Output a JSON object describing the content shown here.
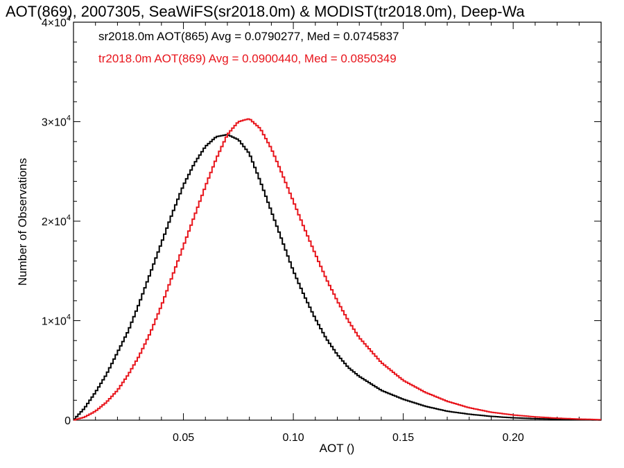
{
  "chart_data": {
    "type": "line",
    "title": "AOT(869), 2007305, SeaWiFS(sr2018.0m) & MODIST(tr2018.0m), Deep-Wa",
    "xlabel": "AOT ()",
    "ylabel": "Number of Observations",
    "xlim": [
      0.0,
      0.24
    ],
    "ylim": [
      0,
      40000
    ],
    "x_ticks": [
      0.05,
      0.1,
      0.15,
      0.2
    ],
    "x_tick_labels": [
      "0.05",
      "0.10",
      "0.15",
      "0.20"
    ],
    "y_ticks": [
      0,
      10000,
      20000,
      30000,
      40000
    ],
    "y_tick_labels": [
      {
        "mant": "0",
        "exp": ""
      },
      {
        "mant": "1×10",
        "exp": "4"
      },
      {
        "mant": "2×10",
        "exp": "4"
      },
      {
        "mant": "3×10",
        "exp": "4"
      },
      {
        "mant": "4×10",
        "exp": "4"
      }
    ],
    "grid": false,
    "series": [
      {
        "name": "sr2018.0m AOT(865)",
        "color": "#000000",
        "legend": "sr2018.0m AOT(865) Avg = 0.0790277, Med = 0.0745837",
        "x": [
          0.0,
          0.005,
          0.01,
          0.015,
          0.02,
          0.025,
          0.03,
          0.035,
          0.04,
          0.045,
          0.05,
          0.055,
          0.06,
          0.065,
          0.07,
          0.075,
          0.08,
          0.085,
          0.09,
          0.095,
          0.1,
          0.105,
          0.11,
          0.115,
          0.12,
          0.125,
          0.13,
          0.14,
          0.15,
          0.16,
          0.17,
          0.18,
          0.19,
          0.2,
          0.21,
          0.22,
          0.23,
          0.24
        ],
        "y": [
          0,
          1200,
          2800,
          4600,
          6800,
          9000,
          11800,
          14800,
          17800,
          20800,
          23600,
          25800,
          27500,
          28500,
          28700,
          28200,
          26800,
          24000,
          21000,
          18000,
          15000,
          12500,
          10200,
          8200,
          6600,
          5300,
          4400,
          3000,
          2100,
          1400,
          900,
          600,
          380,
          240,
          150,
          90,
          50,
          20
        ]
      },
      {
        "name": "tr2018.0m AOT(869)",
        "color": "#e8141b",
        "legend": "tr2018.0m AOT(869) Avg = 0.0900440, Med = 0.0850349",
        "x": [
          0.0,
          0.005,
          0.01,
          0.015,
          0.02,
          0.025,
          0.03,
          0.035,
          0.04,
          0.045,
          0.05,
          0.055,
          0.06,
          0.065,
          0.07,
          0.075,
          0.08,
          0.085,
          0.09,
          0.095,
          0.1,
          0.105,
          0.11,
          0.115,
          0.12,
          0.125,
          0.13,
          0.14,
          0.15,
          0.16,
          0.17,
          0.18,
          0.19,
          0.2,
          0.21,
          0.22,
          0.23,
          0.24
        ],
        "y": [
          0,
          300,
          900,
          1800,
          3000,
          4600,
          6500,
          8800,
          11500,
          14500,
          17500,
          20500,
          23500,
          26300,
          28700,
          30000,
          30300,
          29300,
          27300,
          24700,
          22000,
          19300,
          16700,
          14200,
          12000,
          10000,
          8300,
          5800,
          4000,
          2800,
          1900,
          1250,
          800,
          520,
          330,
          200,
          110,
          50
        ]
      }
    ]
  }
}
